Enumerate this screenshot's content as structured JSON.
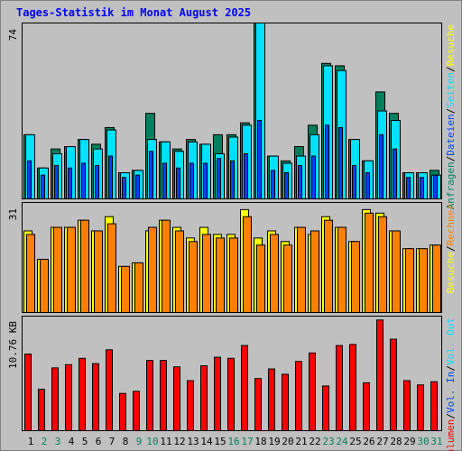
{
  "title": "Tages-Statistik im Monat August 2025",
  "colors": {
    "title": "#0000ff",
    "hits": "#00805c",
    "files": "#0040ff",
    "pages": "#00e0ff",
    "visits": "#ffff00",
    "sites": "#ff8000",
    "kbytes": "#ff0000",
    "weekend_day": "#00805c",
    "weekday": "#000000",
    "background": "#c0c0c0",
    "panel": "#c0c0c0",
    "border": "#000000"
  },
  "chart_data": [
    {
      "type": "bar",
      "panel": "hits-files-pages",
      "ylabel_max": "74",
      "ylim": [
        0,
        74
      ],
      "categories": [
        "1",
        "2",
        "3",
        "4",
        "5",
        "6",
        "7",
        "8",
        "9",
        "10",
        "11",
        "12",
        "13",
        "14",
        "15",
        "16",
        "17",
        "18",
        "19",
        "20",
        "21",
        "22",
        "23",
        "24",
        "25",
        "26",
        "27",
        "28",
        "29",
        "30",
        "31"
      ],
      "weekend": [
        false,
        true,
        true,
        false,
        false,
        false,
        false,
        false,
        true,
        true,
        false,
        false,
        false,
        false,
        false,
        true,
        true,
        false,
        false,
        false,
        false,
        false,
        true,
        true,
        false,
        false,
        false,
        false,
        false,
        true,
        true
      ],
      "right_labels": [
        {
          "text": "Anfragen",
          "color_key": "hits"
        },
        {
          "text": "/",
          "color_key": "weekday"
        },
        {
          "text": "Dateien",
          "color_key": "files"
        },
        {
          "text": "/",
          "color_key": "weekday"
        },
        {
          "text": "Seiten",
          "color_key": "pages"
        },
        {
          "text": "/",
          "color_key": "weekday"
        },
        {
          "text": "Besuche",
          "color_key": "visits"
        }
      ],
      "series": [
        {
          "name": "Anfragen",
          "color_key": "hits",
          "values": [
            27,
            13,
            21,
            22,
            25,
            23,
            30,
            11,
            12,
            36,
            24,
            21,
            25,
            23,
            27,
            27,
            32,
            74,
            18,
            16,
            22,
            31,
            57,
            56,
            25,
            16,
            45,
            36,
            11,
            11,
            12
          ]
        },
        {
          "name": "Dateien",
          "color_key": "files",
          "values": [
            16,
            10,
            14,
            13,
            15,
            14,
            18,
            9,
            10,
            20,
            15,
            13,
            15,
            15,
            17,
            16,
            19,
            33,
            12,
            11,
            14,
            18,
            31,
            30,
            14,
            11,
            27,
            21,
            9,
            9,
            10
          ]
        },
        {
          "name": "Seiten",
          "color_key": "pages",
          "values": [
            27,
            13,
            19,
            22,
            25,
            21,
            29,
            11,
            12,
            25,
            24,
            20,
            24,
            23,
            19,
            26,
            31,
            74,
            18,
            15,
            18,
            27,
            56,
            54,
            25,
            16,
            37,
            33,
            11,
            11,
            10
          ]
        }
      ]
    },
    {
      "type": "bar",
      "panel": "visits-sites",
      "ylabel_max": "31",
      "ylim": [
        0,
        31
      ],
      "right_labels": [
        {
          "text": "Besuche",
          "color_key": "visits"
        },
        {
          "text": "/",
          "color_key": "weekday"
        },
        {
          "text": "Rechner",
          "color_key": "sites"
        }
      ],
      "series": [
        {
          "name": "Besuche",
          "color_key": "visits",
          "values": [
            23,
            15,
            24,
            24,
            26,
            23,
            27,
            13,
            14,
            23,
            26,
            24,
            21,
            24,
            22,
            22,
            29,
            21,
            23,
            20,
            24,
            22,
            27,
            24,
            20,
            29,
            28,
            23,
            18,
            18,
            19
          ]
        },
        {
          "name": "Rechner",
          "color_key": "sites",
          "values": [
            22,
            15,
            24,
            24,
            26,
            23,
            25,
            13,
            14,
            24,
            26,
            23,
            20,
            22,
            21,
            21,
            27,
            19,
            22,
            19,
            24,
            23,
            26,
            24,
            20,
            28,
            27,
            23,
            18,
            18,
            19
          ]
        }
      ]
    },
    {
      "type": "bar",
      "panel": "volume",
      "ylabel_max": "10.76 KB",
      "ylim": [
        0,
        10.76
      ],
      "right_labels": [
        {
          "text": "Volumen",
          "color_key": "kbytes"
        },
        {
          "text": "/",
          "color_key": "weekday"
        },
        {
          "text": "Vol. In",
          "color_key": "files"
        },
        {
          "text": "/",
          "color_key": "weekday"
        },
        {
          "text": "Vol. Out",
          "color_key": "pages"
        }
      ],
      "series": [
        {
          "name": "Volumen",
          "color_key": "kbytes",
          "values": [
            7.2,
            3.9,
            5.9,
            6.2,
            6.8,
            6.3,
            7.6,
            3.5,
            3.7,
            6.6,
            6.6,
            6.0,
            4.7,
            6.1,
            6.9,
            6.8,
            8.0,
            4.9,
            5.8,
            5.3,
            6.5,
            7.3,
            4.2,
            8.0,
            8.1,
            4.5,
            10.4,
            8.6,
            4.7,
            4.3,
            4.6
          ]
        }
      ]
    }
  ]
}
